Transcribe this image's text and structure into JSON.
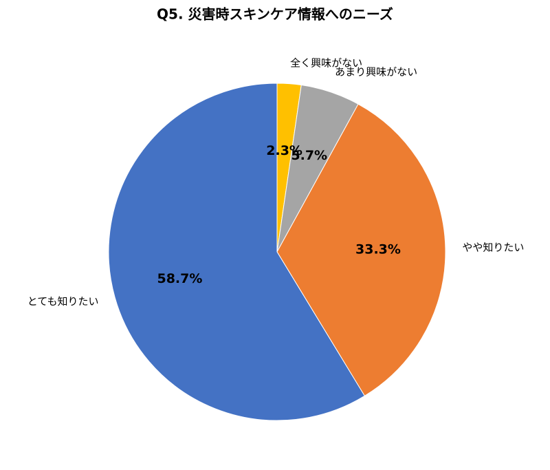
{
  "chart_data": {
    "type": "pie",
    "title": "Q5. 災害時スキンケア情報へのニーズ",
    "categories": [
      "全く興味がない",
      "あまり興味がない",
      "やや知りたい",
      "とても知りたい"
    ],
    "values": [
      2.3,
      5.7,
      33.3,
      58.7
    ],
    "value_labels": [
      "2.3%",
      "5.7%",
      "33.3%",
      "58.7%"
    ],
    "colors": [
      "#FFC000",
      "#A5A5A5",
      "#ED7D31",
      "#4472C4"
    ]
  }
}
